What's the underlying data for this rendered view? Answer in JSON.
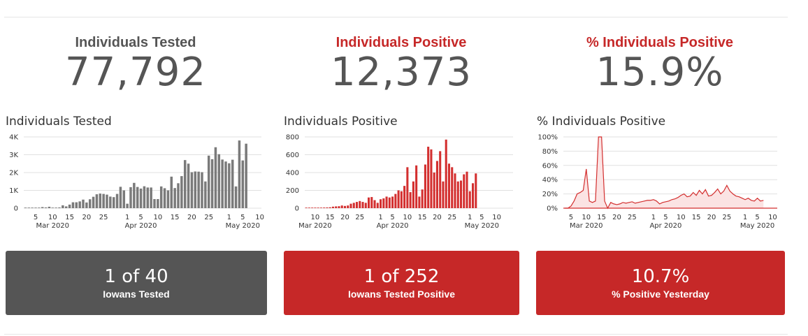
{
  "colors": {
    "gray": "#555555",
    "red": "#c62828",
    "bar_gray": "#7a7a7a",
    "bar_red": "#d32f2f",
    "grid": "#e0e0e0"
  },
  "headlines": [
    {
      "title": "Individuals Tested",
      "value": "77,792",
      "color": "#555555"
    },
    {
      "title": "Individuals Positive",
      "value": "12,373",
      "color": "#c62828"
    },
    {
      "title": "% Individuals Positive",
      "value": "15.9%",
      "color": "#c62828"
    }
  ],
  "cards": [
    {
      "big": "1 of 40",
      "small": "Iowans Tested",
      "color": "#555555"
    },
    {
      "big": "1 of 252",
      "small": "Iowans Tested Positive",
      "color": "#c62828"
    },
    {
      "big": "10.7%",
      "small": "% Positive Yesterday",
      "color": "#c62828"
    }
  ],
  "chart_data": [
    {
      "type": "bar",
      "title": "Individuals Tested",
      "x_start": "2020-03-02",
      "ylim": [
        0,
        4000
      ],
      "ytick_labels": [
        "0",
        "1K",
        "2K",
        "3K",
        "4K"
      ],
      "xtick_labels": [
        "5",
        "10",
        "15",
        "20",
        "25",
        "1",
        "5",
        "10",
        "15",
        "20",
        "25",
        "1",
        "5",
        "10"
      ],
      "month_labels": [
        "Mar 2020",
        "Apr 2020",
        "May 2020"
      ],
      "grid": true,
      "values": [
        10,
        10,
        20,
        10,
        30,
        60,
        40,
        80,
        20,
        30,
        40,
        160,
        100,
        200,
        330,
        330,
        380,
        480,
        320,
        500,
        640,
        780,
        820,
        800,
        760,
        650,
        620,
        800,
        1200,
        1000,
        250,
        1180,
        1420,
        1190,
        1100,
        1230,
        1160,
        1160,
        510,
        510,
        1220,
        1120,
        1000,
        1770,
        1130,
        1400,
        1800,
        2700,
        2500,
        2020,
        2060,
        2050,
        2020,
        1500,
        2950,
        2750,
        3420,
        3030,
        2730,
        2620,
        2520,
        2720,
        1220,
        3800,
        2680,
        3620
      ]
    },
    {
      "type": "bar",
      "title": "Individuals Positive",
      "x_start": "2020-03-07",
      "ylim": [
        0,
        800
      ],
      "ytick_labels": [
        "0",
        "200",
        "400",
        "600",
        "800"
      ],
      "xtick_labels": [
        "10",
        "15",
        "20",
        "25",
        "1",
        "5",
        "10",
        "15",
        "20",
        "25",
        "1",
        "5",
        "10"
      ],
      "month_labels": [
        "Mar 2020",
        "Apr 2020",
        "May 2020"
      ],
      "grid": true,
      "values": [
        3,
        5,
        2,
        2,
        4,
        5,
        7,
        8,
        10,
        17,
        20,
        22,
        30,
        25,
        30,
        50,
        60,
        70,
        80,
        70,
        60,
        120,
        125,
        90,
        60,
        100,
        110,
        130,
        120,
        130,
        160,
        200,
        190,
        250,
        460,
        180,
        300,
        480,
        130,
        210,
        490,
        690,
        660,
        400,
        530,
        640,
        300,
        770,
        500,
        460,
        390,
        300,
        310,
        380,
        410,
        190,
        280,
        390
      ]
    },
    {
      "type": "area",
      "title": "% Individuals Positive",
      "x_start": "2020-03-03",
      "ylim": [
        0,
        100
      ],
      "ytick_labels": [
        "0%",
        "20%",
        "40%",
        "60%",
        "80%",
        "100%"
      ],
      "xtick_labels": [
        "5",
        "10",
        "15",
        "20",
        "25",
        "1",
        "5",
        "10",
        "15",
        "20",
        "25",
        "1",
        "5",
        "10"
      ],
      "month_labels": [
        "Mar 2020",
        "Apr 2020",
        "May 2020"
      ],
      "grid": true,
      "values": [
        0,
        0,
        3,
        10,
        20,
        22,
        25,
        55,
        10,
        8,
        10,
        100,
        100,
        10,
        0,
        8,
        6,
        5,
        6,
        8,
        7,
        8,
        9,
        7,
        8,
        9,
        10,
        11,
        11,
        12,
        10,
        6,
        8,
        9,
        10,
        12,
        13,
        15,
        18,
        20,
        16,
        17,
        22,
        18,
        25,
        20,
        26,
        17,
        18,
        22,
        27,
        20,
        24,
        32,
        24,
        20,
        17,
        16,
        14,
        12,
        14,
        11,
        10,
        14,
        10,
        11
      ]
    }
  ]
}
